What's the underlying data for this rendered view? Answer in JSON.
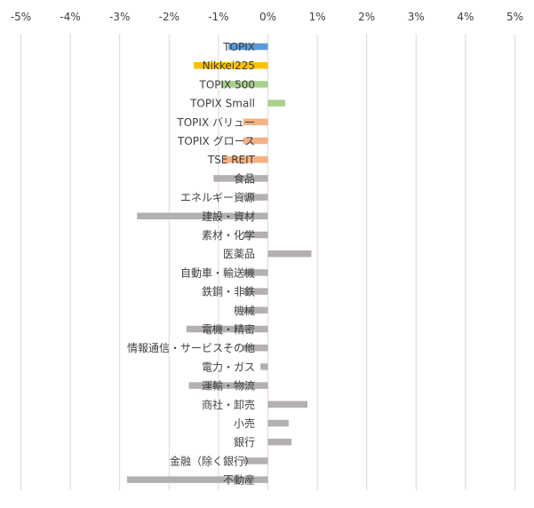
{
  "chart_data": {
    "type": "bar",
    "orientation": "horizontal",
    "x_ticks": [
      "-5%",
      "-4%",
      "-3%",
      "-2%",
      "-1%",
      "0%",
      "1%",
      "2%",
      "3%",
      "4%",
      "5%"
    ],
    "xlim": [
      -5,
      5
    ],
    "x_unit": "%",
    "grid": "vertical gridlines",
    "legend": "none",
    "categories": [
      "TOPIX",
      "Nikkei225",
      "TOPIX 500",
      "TOPIX Small",
      "TOPIX バリュー",
      "TOPIX グロース",
      "TSE REIT",
      "食品",
      "エネルギー資源",
      "建設・資材",
      "素材・化学",
      "医薬品",
      "自動車・輸送機",
      "鉄鋼・非鉄",
      "機械",
      "電機・精密",
      "情報通信・サービスその他",
      "電力・ガス",
      "運輸・物流",
      "商社・卸売",
      "小売",
      "銀行",
      "金融（除く銀行）",
      "不動産"
    ],
    "values": [
      -0.8,
      -1.5,
      -0.95,
      0.35,
      -0.5,
      -0.5,
      -0.9,
      -1.1,
      -0.5,
      -2.65,
      -0.5,
      0.88,
      -0.5,
      -0.5,
      -0.5,
      -1.65,
      -0.5,
      -0.15,
      -1.6,
      0.8,
      0.42,
      0.48,
      -0.5,
      -2.85
    ],
    "colors": [
      "#5b9bd5",
      "#ffc000",
      "#a9d18e",
      "#a9d18e",
      "#f4b183",
      "#f4b183",
      "#f4b183",
      "#b4b0b0",
      "#b4b0b0",
      "#b4b0b0",
      "#b4b0b0",
      "#b4b0b0",
      "#b4b0b0",
      "#b4b0b0",
      "#b4b0b0",
      "#b4b0b0",
      "#b4b0b0",
      "#b4b0b0",
      "#b4b0b0",
      "#b4b0b0",
      "#b4b0b0",
      "#b4b0b0",
      "#b4b0b0",
      "#b4b0b0"
    ],
    "gridline_color": "#d9d9d9",
    "text_color": "#404040"
  }
}
